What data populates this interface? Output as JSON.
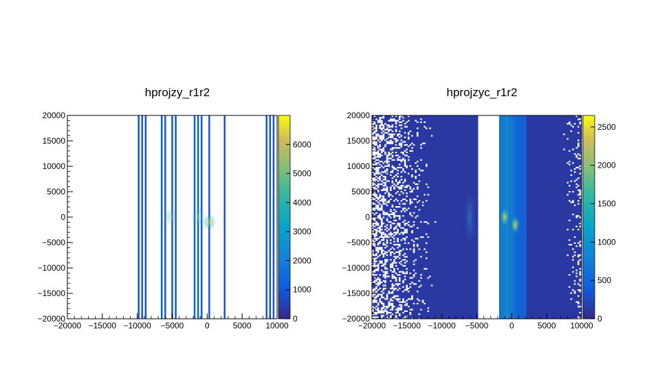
{
  "chart_data": [
    {
      "type": "heatmap",
      "title": "hprojzy_r1r2",
      "xlabel": "",
      "ylabel": "",
      "xlim": [
        -20000,
        10000
      ],
      "ylim": [
        -20000,
        20000
      ],
      "x_ticks": [
        -20000,
        -15000,
        -10000,
        -5000,
        0,
        5000,
        10000
      ],
      "x_tick_labels": [
        "−20000",
        "−15000",
        "−10000",
        "−5000",
        "0",
        "5000",
        "10000"
      ],
      "y_ticks": [
        20000,
        15000,
        10000,
        5000,
        0,
        -5000,
        -10000,
        -15000,
        -20000
      ],
      "y_tick_labels": [
        "20000",
        "15000",
        "10000",
        "5000",
        "0",
        "−5000",
        "−10000",
        "−15000",
        "−20000"
      ],
      "colorbar": {
        "range": [
          0,
          7000
        ],
        "ticks": [
          0,
          1000,
          2000,
          3000,
          4000,
          5000,
          6000
        ],
        "tick_labels": [
          "0",
          "1000",
          "2000",
          "3000",
          "4000",
          "5000",
          "6000"
        ]
      },
      "columns": [
        {
          "x": -9800,
          "width": 250,
          "value": 900
        },
        {
          "x": -9300,
          "width": 250,
          "value": 900
        },
        {
          "x": -8800,
          "width": 250,
          "value": 900
        },
        {
          "x": -6500,
          "width": 250,
          "value": 1000
        },
        {
          "x": -6000,
          "width": 250,
          "value": 1100
        },
        {
          "x": -5000,
          "width": 250,
          "value": 1000
        },
        {
          "x": -4500,
          "width": 250,
          "value": 1000
        },
        {
          "x": -1800,
          "width": 250,
          "value": 1200
        },
        {
          "x": -1300,
          "width": 250,
          "value": 1400
        },
        {
          "x": -800,
          "width": 250,
          "value": 1100
        },
        {
          "x": 300,
          "width": 250,
          "value": 1000
        },
        {
          "x": 2500,
          "width": 250,
          "value": 900
        },
        {
          "x": 8500,
          "width": 250,
          "value": 900
        },
        {
          "x": 9000,
          "width": 250,
          "value": 900
        },
        {
          "x": 9500,
          "width": 250,
          "value": 900
        }
      ],
      "hotspots": [
        {
          "x": -5200,
          "y": 0,
          "value": 2800
        },
        {
          "x": -1300,
          "y": 0,
          "value": 3000
        },
        {
          "x": 300,
          "y": -1000,
          "value": 4500
        }
      ]
    },
    {
      "type": "heatmap",
      "title": "hprojzyc_r1r2",
      "xlabel": "",
      "ylabel": "",
      "xlim": [
        -20000,
        10000
      ],
      "ylim": [
        -20000,
        20000
      ],
      "x_ticks": [
        -20000,
        -15000,
        -10000,
        -5000,
        0,
        5000,
        10000
      ],
      "x_tick_labels": [
        "−20000",
        "−15000",
        "−10000",
        "−5000",
        "0",
        "5000",
        "10000"
      ],
      "y_ticks": [
        20000,
        15000,
        10000,
        5000,
        0,
        -5000,
        -10000,
        -15000,
        -20000
      ],
      "y_tick_labels": [
        "20000",
        "15000",
        "10000",
        "5000",
        "0",
        "−5000",
        "−10000",
        "−15000",
        "−20000"
      ],
      "colorbar": {
        "range": [
          0,
          2650
        ],
        "ticks": [
          0,
          500,
          1000,
          1500,
          2000,
          2500
        ],
        "tick_labels": [
          "0",
          "500",
          "1000",
          "1500",
          "2000",
          "2500"
        ]
      },
      "background_value": 120,
      "empty_band": {
        "x_from": -4800,
        "x_to": -1800
      },
      "bright_band": {
        "x_from": -1800,
        "x_to": 2000,
        "value": 700
      },
      "hotspots": [
        {
          "x": -6000,
          "y": 0,
          "value": 700
        },
        {
          "x": -1000,
          "y": 0,
          "value": 2200
        },
        {
          "x": 500,
          "y": -1500,
          "value": 2600
        }
      ]
    }
  ]
}
